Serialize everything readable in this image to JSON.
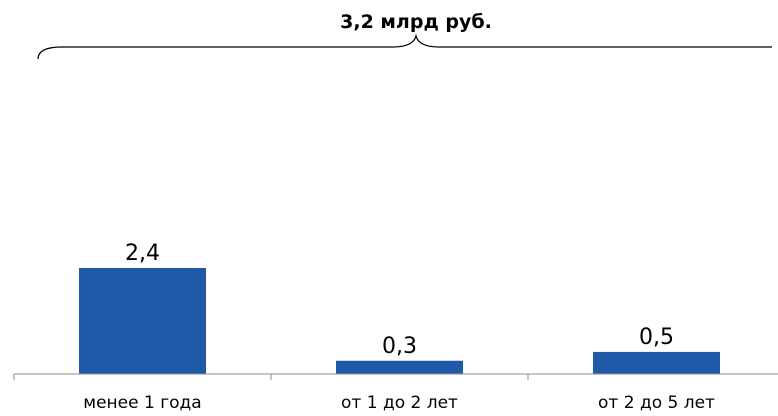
{
  "chart_data": {
    "type": "bar",
    "title": "3,2 млрд руб.",
    "categories": [
      "менее 1 года",
      "от 1 до 2 лет",
      "от 2 до 5 лет"
    ],
    "values": [
      2.4,
      0.3,
      0.5
    ],
    "value_labels": [
      "2,4",
      "0,3",
      "0,5"
    ],
    "xlabel": "",
    "ylabel": "",
    "ylim": [
      0,
      2.4
    ],
    "grid": false,
    "legend": "none",
    "bar_color": "#1f5aa8"
  }
}
